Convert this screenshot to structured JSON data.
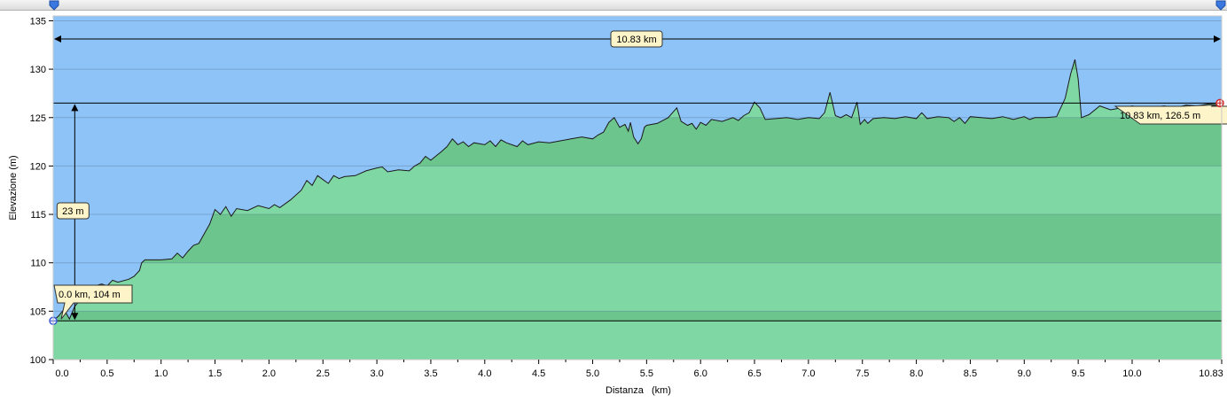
{
  "chart_data": {
    "type": "area",
    "xlabel": "Distanza   (km)",
    "ylabel": "Elevazione (m)",
    "xlim": [
      0,
      10.83
    ],
    "ylim": [
      100,
      135.5
    ],
    "x_ticks": [
      {
        "value": 0.0,
        "label": "0.0"
      },
      {
        "value": 0.5,
        "label": "0.5"
      },
      {
        "value": 1.0,
        "label": "1.0"
      },
      {
        "value": 1.5,
        "label": "1.5"
      },
      {
        "value": 2.0,
        "label": "2.0"
      },
      {
        "value": 2.5,
        "label": "2.5"
      },
      {
        "value": 3.0,
        "label": "3.0"
      },
      {
        "value": 3.5,
        "label": "3.5"
      },
      {
        "value": 4.0,
        "label": "4.0"
      },
      {
        "value": 4.5,
        "label": "4.5"
      },
      {
        "value": 5.0,
        "label": "5.0"
      },
      {
        "value": 5.5,
        "label": "5.5"
      },
      {
        "value": 6.0,
        "label": "6.0"
      },
      {
        "value": 6.5,
        "label": "6.5"
      },
      {
        "value": 7.0,
        "label": "7.0"
      },
      {
        "value": 7.5,
        "label": "7.5"
      },
      {
        "value": 8.0,
        "label": "8.0"
      },
      {
        "value": 8.5,
        "label": "8.5"
      },
      {
        "value": 9.0,
        "label": "9.0"
      },
      {
        "value": 9.5,
        "label": "9.5"
      },
      {
        "value": 10.0,
        "label": "10.0"
      },
      {
        "value": 10.83,
        "label": "10.83"
      }
    ],
    "y_ticks": [
      {
        "value": 100,
        "label": "100"
      },
      {
        "value": 105,
        "label": "105"
      },
      {
        "value": 110,
        "label": "110"
      },
      {
        "value": 115,
        "label": "115"
      },
      {
        "value": 120,
        "label": "120"
      },
      {
        "value": 125,
        "label": "125"
      },
      {
        "value": 130,
        "label": "130"
      },
      {
        "value": 135,
        "label": "135"
      }
    ],
    "profile": [
      [
        0.0,
        104.0
      ],
      [
        0.05,
        104.5
      ],
      [
        0.1,
        105.2
      ],
      [
        0.15,
        104.2
      ],
      [
        0.2,
        105.5
      ],
      [
        0.3,
        106.8
      ],
      [
        0.35,
        107.5
      ],
      [
        0.45,
        107.8
      ],
      [
        0.5,
        107.6
      ],
      [
        0.55,
        108.2
      ],
      [
        0.6,
        108.0
      ],
      [
        0.7,
        108.3
      ],
      [
        0.75,
        108.6
      ],
      [
        0.8,
        109.2
      ],
      [
        0.82,
        110.0
      ],
      [
        0.85,
        110.3
      ],
      [
        1.0,
        110.3
      ],
      [
        1.1,
        110.4
      ],
      [
        1.15,
        111.0
      ],
      [
        1.2,
        110.5
      ],
      [
        1.25,
        111.2
      ],
      [
        1.3,
        111.8
      ],
      [
        1.35,
        112.0
      ],
      [
        1.4,
        113.0
      ],
      [
        1.45,
        114.0
      ],
      [
        1.5,
        115.5
      ],
      [
        1.55,
        115.0
      ],
      [
        1.6,
        115.8
      ],
      [
        1.65,
        114.8
      ],
      [
        1.7,
        115.6
      ],
      [
        1.8,
        115.4
      ],
      [
        1.9,
        115.9
      ],
      [
        2.0,
        115.6
      ],
      [
        2.05,
        116.0
      ],
      [
        2.1,
        115.7
      ],
      [
        2.2,
        116.5
      ],
      [
        2.3,
        117.5
      ],
      [
        2.35,
        118.5
      ],
      [
        2.4,
        118.0
      ],
      [
        2.45,
        119.0
      ],
      [
        2.5,
        118.6
      ],
      [
        2.55,
        118.2
      ],
      [
        2.6,
        119.0
      ],
      [
        2.65,
        118.7
      ],
      [
        2.7,
        118.9
      ],
      [
        2.8,
        119.0
      ],
      [
        2.9,
        119.5
      ],
      [
        3.0,
        119.8
      ],
      [
        3.05,
        119.9
      ],
      [
        3.1,
        119.4
      ],
      [
        3.2,
        119.6
      ],
      [
        3.3,
        119.5
      ],
      [
        3.35,
        120.0
      ],
      [
        3.4,
        120.3
      ],
      [
        3.45,
        121.0
      ],
      [
        3.5,
        120.6
      ],
      [
        3.6,
        121.5
      ],
      [
        3.65,
        122.0
      ],
      [
        3.7,
        122.8
      ],
      [
        3.75,
        122.2
      ],
      [
        3.8,
        122.5
      ],
      [
        3.85,
        122.0
      ],
      [
        3.9,
        122.4
      ],
      [
        4.0,
        122.2
      ],
      [
        4.05,
        122.6
      ],
      [
        4.1,
        122.0
      ],
      [
        4.15,
        122.7
      ],
      [
        4.2,
        122.4
      ],
      [
        4.3,
        122.0
      ],
      [
        4.35,
        122.6
      ],
      [
        4.4,
        122.2
      ],
      [
        4.5,
        122.5
      ],
      [
        4.6,
        122.4
      ],
      [
        4.7,
        122.6
      ],
      [
        4.8,
        122.8
      ],
      [
        4.9,
        123.0
      ],
      [
        5.0,
        122.8
      ],
      [
        5.05,
        123.2
      ],
      [
        5.1,
        123.5
      ],
      [
        5.15,
        124.5
      ],
      [
        5.2,
        125.0
      ],
      [
        5.25,
        124.0
      ],
      [
        5.3,
        124.3
      ],
      [
        5.33,
        123.6
      ],
      [
        5.35,
        124.5
      ],
      [
        5.38,
        123.0
      ],
      [
        5.42,
        122.3
      ],
      [
        5.45,
        122.8
      ],
      [
        5.48,
        124.0
      ],
      [
        5.5,
        124.2
      ],
      [
        5.6,
        124.4
      ],
      [
        5.7,
        125.0
      ],
      [
        5.78,
        126.0
      ],
      [
        5.82,
        124.6
      ],
      [
        5.88,
        124.2
      ],
      [
        5.92,
        124.4
      ],
      [
        5.96,
        123.8
      ],
      [
        6.0,
        124.5
      ],
      [
        6.05,
        124.2
      ],
      [
        6.1,
        124.8
      ],
      [
        6.2,
        124.6
      ],
      [
        6.3,
        125.0
      ],
      [
        6.35,
        124.7
      ],
      [
        6.4,
        125.2
      ],
      [
        6.45,
        125.5
      ],
      [
        6.5,
        126.6
      ],
      [
        6.55,
        126.0
      ],
      [
        6.6,
        124.8
      ],
      [
        6.7,
        124.9
      ],
      [
        6.8,
        125.0
      ],
      [
        6.9,
        124.8
      ],
      [
        7.0,
        125.0
      ],
      [
        7.1,
        124.9
      ],
      [
        7.15,
        125.5
      ],
      [
        7.2,
        127.6
      ],
      [
        7.25,
        125.2
      ],
      [
        7.3,
        125.0
      ],
      [
        7.35,
        125.3
      ],
      [
        7.4,
        125.0
      ],
      [
        7.45,
        126.6
      ],
      [
        7.48,
        124.3
      ],
      [
        7.52,
        124.8
      ],
      [
        7.55,
        124.4
      ],
      [
        7.6,
        124.9
      ],
      [
        7.7,
        125.0
      ],
      [
        7.8,
        124.9
      ],
      [
        7.9,
        125.1
      ],
      [
        8.0,
        124.9
      ],
      [
        8.05,
        125.5
      ],
      [
        8.1,
        124.9
      ],
      [
        8.2,
        125.1
      ],
      [
        8.3,
        125.0
      ],
      [
        8.35,
        124.6
      ],
      [
        8.4,
        125.0
      ],
      [
        8.45,
        124.4
      ],
      [
        8.5,
        125.1
      ],
      [
        8.6,
        125.0
      ],
      [
        8.7,
        124.9
      ],
      [
        8.8,
        125.1
      ],
      [
        8.9,
        124.8
      ],
      [
        9.0,
        125.1
      ],
      [
        9.05,
        124.8
      ],
      [
        9.1,
        125.0
      ],
      [
        9.2,
        125.0
      ],
      [
        9.3,
        125.1
      ],
      [
        9.38,
        127.0
      ],
      [
        9.43,
        129.5
      ],
      [
        9.47,
        131.0
      ],
      [
        9.5,
        129.0
      ],
      [
        9.53,
        125.0
      ],
      [
        9.6,
        125.3
      ],
      [
        9.7,
        126.2
      ],
      [
        9.8,
        125.8
      ],
      [
        9.9,
        126.0
      ],
      [
        10.0,
        126.2
      ],
      [
        10.1,
        126.0
      ],
      [
        10.2,
        126.1
      ],
      [
        10.3,
        126.2
      ],
      [
        10.4,
        126.0
      ],
      [
        10.5,
        126.3
      ],
      [
        10.6,
        126.2
      ],
      [
        10.7,
        126.4
      ],
      [
        10.83,
        126.5
      ]
    ],
    "start": {
      "x": 0.0,
      "y": 104
    },
    "end": {
      "x": 10.83,
      "y": 126.5
    },
    "ref_lines": [
      104,
      126.5
    ],
    "elevation_gain_x": 0.2,
    "annotations": {
      "distance": "10.83 km",
      "elevation_diff": "23 m",
      "start_label": "0.0 km, 104 m",
      "end_label": "10.83 km, 126.5 m"
    },
    "grid": true,
    "colors": {
      "sky": "#8ec3f7",
      "area_light": "#7fd7a3",
      "area_dark": "#6cc58c",
      "profile_line": "#1a1a1a",
      "tooltip_bg": "#fdf5c9",
      "start_marker": "#3a57d6",
      "end_marker": "#d22a2a"
    }
  },
  "slider": {
    "start_marker": "range-start-marker",
    "end_marker": "range-end-marker"
  }
}
